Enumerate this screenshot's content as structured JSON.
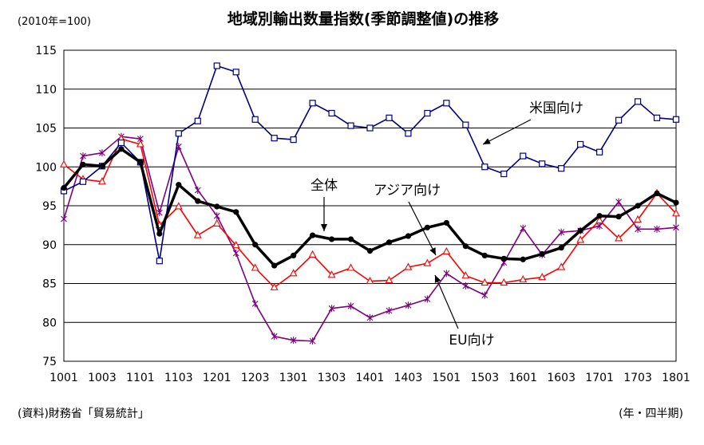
{
  "chart_data": {
    "type": "line",
    "title": "地域別輸出数量指数(季節調整値)の推移",
    "unit_note": "(2010年=100)",
    "source": "(資料)財務省「貿易統計」",
    "xlabel": "(年・四半期)",
    "ylabel": "",
    "ylim": [
      75,
      115
    ],
    "yticks": [
      "75",
      "80",
      "85",
      "90",
      "95",
      "100",
      "105",
      "110",
      "115"
    ],
    "grid": "horizontal",
    "x": [
      "1001",
      "1002",
      "1003",
      "1004",
      "1101",
      "1102",
      "1103",
      "1104",
      "1201",
      "1202",
      "1203",
      "1204",
      "1301",
      "1302",
      "1303",
      "1304",
      "1401",
      "1402",
      "1403",
      "1404",
      "1501",
      "1502",
      "1503",
      "1504",
      "1601",
      "1602",
      "1603",
      "1604",
      "1701",
      "1702",
      "1703",
      "1704",
      "1801"
    ],
    "xtick_labels": [
      "1001",
      "1003",
      "1101",
      "1103",
      "1201",
      "1203",
      "1301",
      "1303",
      "1401",
      "1403",
      "1501",
      "1503",
      "1601",
      "1603",
      "1701",
      "1703",
      "1801"
    ],
    "series": [
      {
        "name": "米国向け",
        "color": "#000080",
        "marker": "square",
        "values": [
          96.9,
          98.1,
          100.1,
          103.1,
          100.6,
          87.9,
          104.3,
          105.9,
          113.0,
          112.2,
          106.1,
          103.7,
          103.5,
          108.2,
          106.9,
          105.3,
          105.0,
          106.3,
          104.3,
          106.9,
          108.2,
          105.4,
          100.0,
          99.1,
          101.4,
          100.4,
          99.8,
          102.9,
          101.9,
          106.0,
          108.4,
          106.3,
          106.1
        ]
      },
      {
        "name": "全体",
        "color": "#000000",
        "marker": "circle",
        "values": [
          97.3,
          100.3,
          100.1,
          102.3,
          100.6,
          91.4,
          97.7,
          95.6,
          94.9,
          94.2,
          90.0,
          87.3,
          88.6,
          91.2,
          90.7,
          90.7,
          89.2,
          90.3,
          91.1,
          92.2,
          92.8,
          89.8,
          88.6,
          88.2,
          88.1,
          88.8,
          89.6,
          91.8,
          93.7,
          93.6,
          95.0,
          96.6,
          95.4
        ]
      },
      {
        "name": "アジア向け",
        "color": "#ff0000",
        "marker": "triangle",
        "values": [
          100.3,
          98.4,
          98.1,
          103.6,
          102.9,
          92.5,
          94.9,
          91.2,
          92.7,
          89.9,
          87.0,
          84.5,
          86.3,
          88.7,
          86.1,
          87.0,
          85.3,
          85.4,
          87.1,
          87.6,
          89.1,
          86.0,
          85.1,
          85.1,
          85.5,
          85.8,
          87.1,
          90.6,
          93.1,
          90.8,
          93.2,
          96.6,
          94.0
        ]
      },
      {
        "name": "EU向け",
        "color": "#800080",
        "marker": "star",
        "values": [
          93.3,
          101.4,
          101.8,
          103.9,
          103.6,
          94.1,
          102.6,
          97.0,
          93.7,
          88.9,
          82.4,
          78.2,
          77.7,
          77.6,
          81.8,
          82.1,
          80.6,
          81.5,
          82.2,
          83.0,
          86.3,
          84.7,
          83.5,
          87.7,
          92.1,
          88.7,
          91.6,
          91.8,
          92.4,
          95.5,
          92.0,
          92.0,
          92.2
        ]
      }
    ],
    "annotations": [
      {
        "text": "米国向け",
        "series": "米国向け"
      },
      {
        "text": "全体",
        "series": "全体"
      },
      {
        "text": "アジア向け",
        "series": "アジア向け"
      },
      {
        "text": "EU向け",
        "series": "EU向け"
      }
    ]
  }
}
